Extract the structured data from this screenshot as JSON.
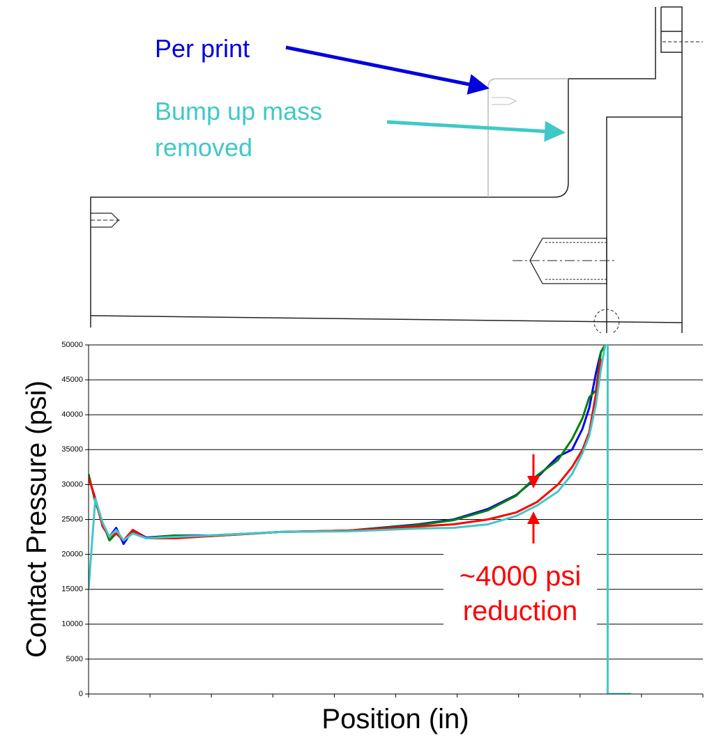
{
  "drawing": {
    "labels": [
      "Per print",
      "Bump up mass",
      "removed"
    ]
  },
  "chart_data": {
    "type": "line",
    "y_label": "Contact Pressure (psi)",
    "x_label": "Position (in)",
    "annotations": [
      "~4000 psi",
      "reduction"
    ],
    "x": [
      0,
      0.11,
      0.23,
      0.34,
      0.45,
      0.57,
      0.72,
      0.94,
      1.4,
      1.96,
      3.1,
      4.23,
      5.37,
      5.94,
      6.5,
      6.96,
      7.3,
      7.64,
      7.87,
      8.04,
      8.15,
      8.26,
      8.34,
      8.41,
      8.45,
      8.45,
      8.83
    ],
    "xlim": [
      0,
      10
    ],
    "ylim": [
      0,
      50000
    ],
    "yticks": [
      0,
      5000,
      10000,
      15000,
      20000,
      25000,
      30000,
      35000,
      40000,
      45000,
      50000
    ],
    "grid": true,
    "series": [
      {
        "color": "#0000ff",
        "values": [
          31000,
          28000,
          24000,
          22500,
          23800,
          21500,
          23500,
          22400,
          22700,
          22700,
          23200,
          23400,
          24300,
          25000,
          26500,
          28500,
          31000,
          34000,
          35000,
          38000,
          41000,
          46000,
          49000,
          50000,
          null,
          null,
          null
        ]
      },
      {
        "color": "#008000",
        "values": [
          31500,
          27500,
          24500,
          22000,
          23000,
          22000,
          23200,
          22300,
          22700,
          22600,
          23200,
          23400,
          24200,
          24900,
          26300,
          28400,
          31300,
          33500,
          36500,
          39500,
          42500,
          43500,
          49000,
          50000,
          null,
          null,
          null
        ]
      },
      {
        "color": "#ff0000",
        "values": [
          31000,
          28000,
          24000,
          22500,
          23000,
          22000,
          23500,
          22300,
          22300,
          22600,
          23200,
          23400,
          24000,
          24300,
          25000,
          26000,
          27500,
          30000,
          32500,
          35000,
          37500,
          43000,
          48000,
          null,
          null,
          null,
          null
        ]
      },
      {
        "color": "#40c8c8",
        "values": [
          15000,
          28000,
          24500,
          22500,
          23500,
          22000,
          23000,
          22300,
          22500,
          22700,
          23200,
          23300,
          23700,
          23800,
          24300,
          25500,
          27000,
          29000,
          31500,
          34500,
          37000,
          41500,
          46500,
          50000,
          50000,
          0,
          0
        ]
      }
    ]
  }
}
